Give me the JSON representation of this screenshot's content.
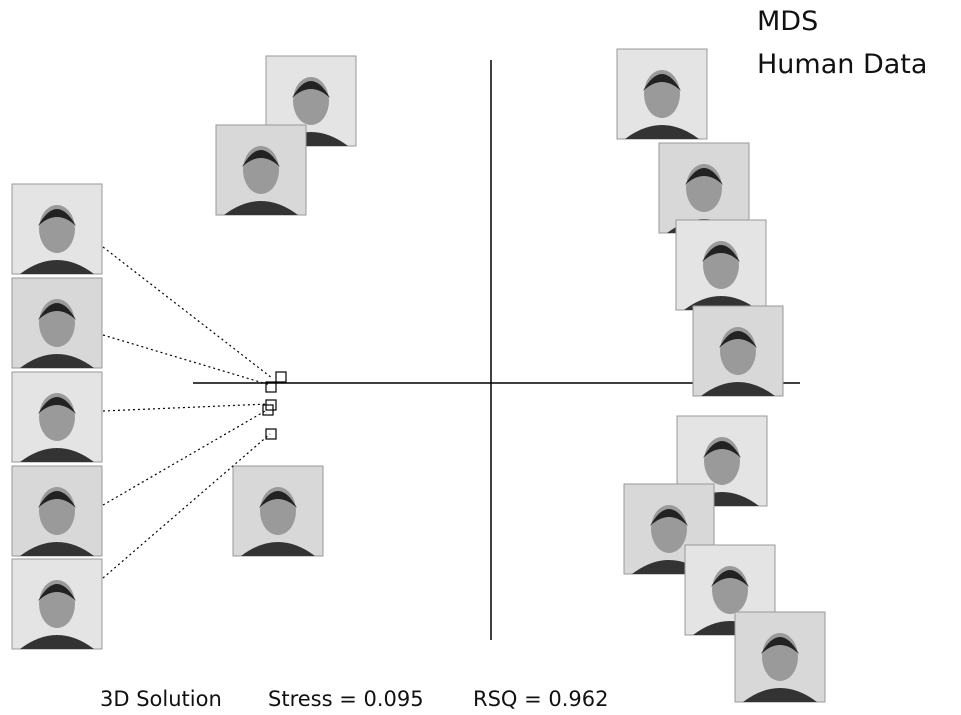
{
  "title": {
    "line1": "MDS",
    "line2": "Human Data"
  },
  "caption": {
    "solution": "3D Solution",
    "stress": "Stress = 0.095",
    "rsq": "RSQ = 0.962"
  }
}
